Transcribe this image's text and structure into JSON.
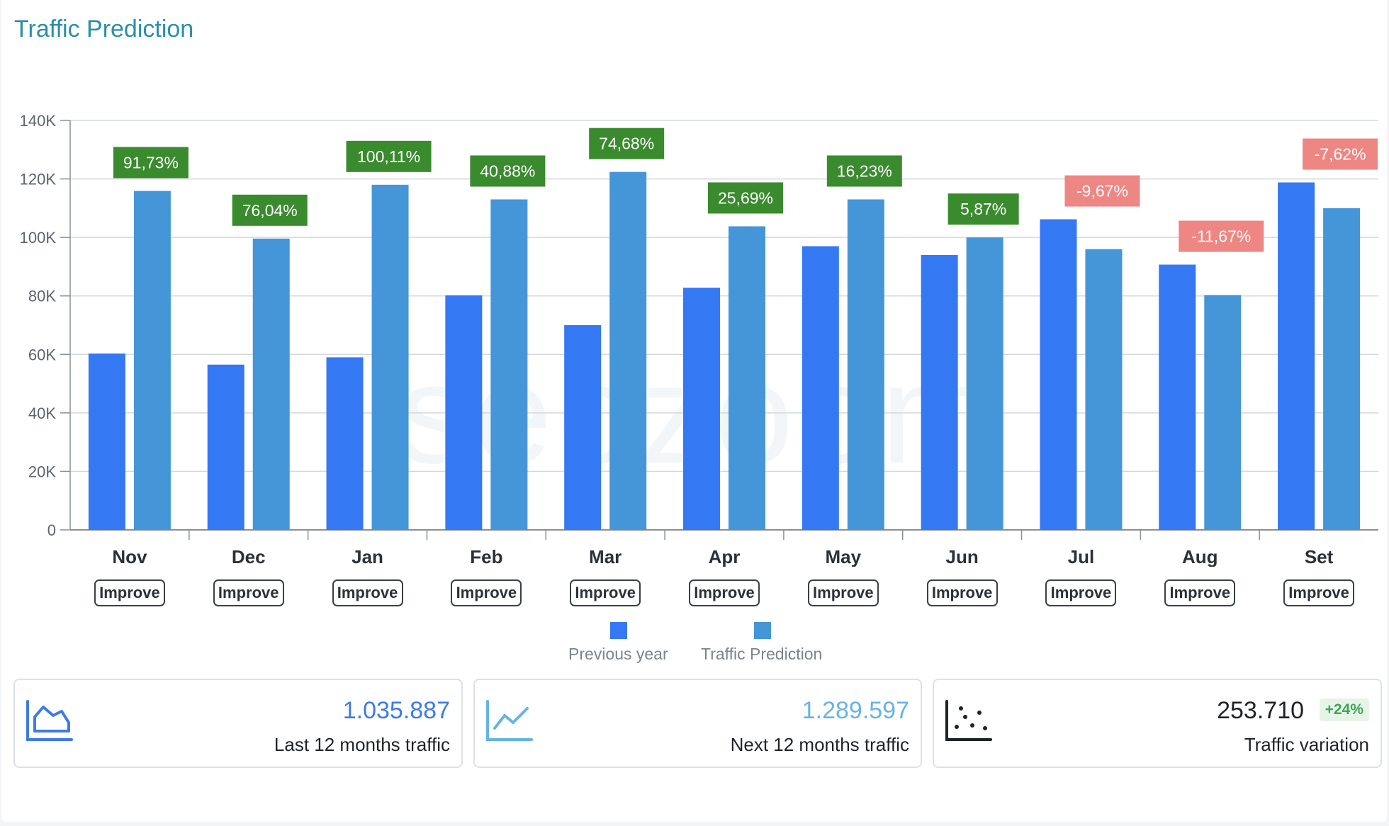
{
  "title": "Traffic Prediction",
  "watermark": "seozoom",
  "colors": {
    "previous": "#3578f4",
    "prediction": "#4596d8",
    "positive": "#3a8a2e",
    "negative": "#ee8683"
  },
  "improve_label": "Improve",
  "chart_data": {
    "type": "bar",
    "categories": [
      "Nov",
      "Dec",
      "Jan",
      "Feb",
      "Mar",
      "Apr",
      "May",
      "Jun",
      "Jul",
      "Aug",
      "Set"
    ],
    "series": [
      {
        "name": "Previous year",
        "values": [
          60300,
          56500,
          59000,
          80200,
          70000,
          82800,
          97000,
          94000,
          106200,
          90700,
          118800
        ]
      },
      {
        "name": "Traffic Prediction",
        "values": [
          115900,
          99600,
          118000,
          113000,
          122400,
          103800,
          113000,
          100000,
          96000,
          80300,
          110000
        ]
      }
    ],
    "variations": [
      "91,73%",
      "76,04%",
      "100,11%",
      "40,88%",
      "74,68%",
      "25,69%",
      "16,23%",
      "5,87%",
      "-9,67%",
      "-11,67%",
      "-7,62%"
    ],
    "y_ticks": [
      "0",
      "20K",
      "40K",
      "60K",
      "80K",
      "100K",
      "120K",
      "140K"
    ],
    "ylim": [
      0,
      140000
    ],
    "grid": true,
    "legend": "bottom"
  },
  "stats": [
    {
      "value": "1.035.887",
      "label": "Last 12 months traffic",
      "icon": "area-chart-icon",
      "color": "#3d7be6"
    },
    {
      "value": "1.289.597",
      "label": "Next 12 months traffic",
      "icon": "line-chart-icon",
      "color": "#67b4e4"
    },
    {
      "value": "253.710",
      "label": "Traffic variation",
      "icon": "scatter-chart-icon",
      "color": "#1f2328",
      "badge": "+24%"
    }
  ]
}
